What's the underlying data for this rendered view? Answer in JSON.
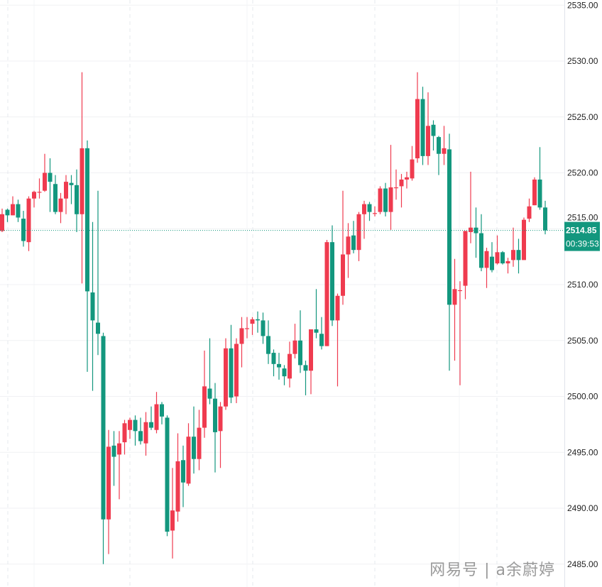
{
  "chart_data": {
    "type": "candlestick",
    "title": "",
    "xlabel": "",
    "ylabel": "",
    "ylim": [
      2484.5,
      2535.5
    ],
    "y_ticks": [
      "2485.00",
      "2490.00",
      "2495.00",
      "2500.00",
      "2505.00",
      "2510.00",
      "2515.00",
      "2520.00",
      "2525.00",
      "2530.00",
      "2535.00"
    ],
    "grid": true,
    "up_color": "#ef3b4f",
    "down_color": "#13977e",
    "last_price": {
      "value": 2514.85,
      "label": "2514.85",
      "countdown": "00:39:53",
      "color": "#13977e"
    },
    "candles_ohlc": [
      [
        2514.8,
        2516.8,
        2514.7,
        2516.3
      ],
      [
        2516.7,
        2516.8,
        2515.6,
        2516.2
      ],
      [
        2516.2,
        2517.9,
        2516.2,
        2517.2
      ],
      [
        2517.2,
        2517.6,
        2515.6,
        2516.0
      ],
      [
        2515.9,
        2516.6,
        2513.4,
        2513.9
      ],
      [
        2513.8,
        2517.9,
        2513.0,
        2517.7
      ],
      [
        2517.7,
        2518.4,
        2516.9,
        2518.3
      ],
      [
        2518.3,
        2519.5,
        2517.7,
        2518.3
      ],
      [
        2518.4,
        2521.7,
        2518.3,
        2520.0
      ],
      [
        2520.0,
        2521.3,
        2516.5,
        2519.2
      ],
      [
        2519.0,
        2519.8,
        2516.3,
        2516.5
      ],
      [
        2516.5,
        2518.2,
        2515.5,
        2517.7
      ],
      [
        2517.7,
        2519.8,
        2516.3,
        2519.2
      ],
      [
        2519.1,
        2519.8,
        2517.2,
        2518.9
      ],
      [
        2518.9,
        2520.3,
        2514.7,
        2516.3
      ],
      [
        2516.3,
        2529.0,
        2510.1,
        2522.2
      ],
      [
        2522.2,
        2522.9,
        2502.2,
        2509.4
      ],
      [
        2509.3,
        2515.6,
        2500.5,
        2506.8
      ],
      [
        2506.6,
        2518.4,
        2503.7,
        2505.6
      ],
      [
        2505.4,
        2505.7,
        2485.0,
        2489.0
      ],
      [
        2489.0,
        2497.0,
        2485.9,
        2495.5
      ],
      [
        2495.6,
        2496.9,
        2492.0,
        2494.6
      ],
      [
        2494.8,
        2496.9,
        2490.8,
        2495.8
      ],
      [
        2495.9,
        2497.9,
        2494.8,
        2497.6
      ],
      [
        2497.0,
        2498.1,
        2496.2,
        2497.9
      ],
      [
        2497.9,
        2498.3,
        2495.6,
        2496.9
      ],
      [
        2496.9,
        2498.1,
        2495.7,
        2496.0
      ],
      [
        2495.8,
        2498.6,
        2494.7,
        2497.7
      ],
      [
        2497.7,
        2499.1,
        2497.0,
        2497.2
      ],
      [
        2497.0,
        2500.4,
        2496.7,
        2499.3
      ],
      [
        2499.3,
        2499.5,
        2497.5,
        2498.2
      ],
      [
        2498.1,
        2498.3,
        2487.5,
        2487.9
      ],
      [
        2488.0,
        2493.6,
        2485.5,
        2489.8
      ],
      [
        2489.7,
        2496.7,
        2488.8,
        2494.2
      ],
      [
        2494.3,
        2495.6,
        2490.1,
        2492.3
      ],
      [
        2492.2,
        2497.6,
        2492.0,
        2496.4
      ],
      [
        2496.4,
        2499.1,
        2493.1,
        2494.4
      ],
      [
        2494.4,
        2498.8,
        2493.4,
        2497.2
      ],
      [
        2497.2,
        2504.1,
        2496.3,
        2500.9
      ],
      [
        2500.7,
        2505.2,
        2499.3,
        2499.8
      ],
      [
        2499.8,
        2501.2,
        2493.2,
        2496.8
      ],
      [
        2496.9,
        2499.5,
        2493.6,
        2499.1
      ],
      [
        2499.1,
        2505.2,
        2498.8,
        2504.3
      ],
      [
        2504.3,
        2506.4,
        2499.4,
        2499.9
      ],
      [
        2500.0,
        2505.2,
        2499.4,
        2504.7
      ],
      [
        2504.7,
        2507.1,
        2502.6,
        2506.1
      ],
      [
        2506.1,
        2507.1,
        2505.2,
        2506.1
      ],
      [
        2506.5,
        2507.1,
        2505.5,
        2506.9
      ],
      [
        2506.9,
        2507.6,
        2505.7,
        2506.8
      ],
      [
        2506.8,
        2507.5,
        2504.7,
        2505.4
      ],
      [
        2505.4,
        2506.8,
        2502.9,
        2503.8
      ],
      [
        2503.9,
        2504.2,
        2501.8,
        2502.9
      ],
      [
        2502.9,
        2503.9,
        2501.5,
        2502.6
      ],
      [
        2502.5,
        2502.8,
        2501.0,
        2501.8
      ],
      [
        2501.6,
        2504.9,
        2500.8,
        2503.8
      ],
      [
        2503.8,
        2506.5,
        2503.4,
        2505.0
      ],
      [
        2505.0,
        2507.7,
        2502.1,
        2502.8
      ],
      [
        2502.8,
        2503.2,
        2500.1,
        2502.3
      ],
      [
        2502.3,
        2506.0,
        2500.2,
        2506.0
      ],
      [
        2506.0,
        2509.6,
        2505.2,
        2505.7
      ],
      [
        2505.6,
        2507.1,
        2504.2,
        2504.5
      ],
      [
        2504.5,
        2514.0,
        2504.5,
        2513.8
      ],
      [
        2513.8,
        2515.3,
        2506.3,
        2506.8
      ],
      [
        2506.8,
        2509.2,
        2500.9,
        2509.0
      ],
      [
        2509.0,
        2518.4,
        2508.2,
        2512.7
      ],
      [
        2512.7,
        2515.5,
        2510.6,
        2514.3
      ],
      [
        2514.4,
        2515.7,
        2512.8,
        2513.1
      ],
      [
        2513.1,
        2516.5,
        2512.1,
        2516.3
      ],
      [
        2516.3,
        2517.5,
        2514.1,
        2517.2
      ],
      [
        2517.2,
        2517.4,
        2515.7,
        2516.5
      ],
      [
        2516.4,
        2517.0,
        2516.1,
        2516.4
      ],
      [
        2516.5,
        2518.8,
        2516.3,
        2518.6
      ],
      [
        2518.6,
        2519.1,
        2516.1,
        2516.5
      ],
      [
        2516.5,
        2522.5,
        2514.9,
        2518.7
      ],
      [
        2518.7,
        2520.3,
        2517.6,
        2518.7
      ],
      [
        2518.8,
        2519.9,
        2516.9,
        2519.4
      ],
      [
        2519.4,
        2520.1,
        2518.6,
        2519.6
      ],
      [
        2519.5,
        2522.4,
        2519.3,
        2521.2
      ],
      [
        2521.3,
        2529.0,
        2520.9,
        2526.6
      ],
      [
        2526.6,
        2527.7,
        2520.7,
        2521.5
      ],
      [
        2521.5,
        2527.2,
        2520.7,
        2524.2
      ],
      [
        2524.3,
        2524.7,
        2522.0,
        2523.3
      ],
      [
        2523.2,
        2523.3,
        2519.8,
        2521.7
      ],
      [
        2521.7,
        2524.2,
        2520.7,
        2522.2
      ],
      [
        2522.1,
        2523.5,
        2502.3,
        2508.2
      ],
      [
        2508.2,
        2512.3,
        2503.2,
        2509.6
      ],
      [
        2509.5,
        2510.3,
        2501.0,
        2509.5
      ],
      [
        2509.9,
        2514.8,
        2508.7,
        2514.8
      ],
      [
        2514.7,
        2520.1,
        2513.7,
        2515.1
      ],
      [
        2515.1,
        2516.9,
        2512.4,
        2514.6
      ],
      [
        2514.6,
        2516.3,
        2511.2,
        2511.5
      ],
      [
        2511.5,
        2513.3,
        2509.7,
        2513.0
      ],
      [
        2512.5,
        2513.8,
        2511.1,
        2511.3
      ],
      [
        2511.9,
        2514.4,
        2511.8,
        2512.9
      ],
      [
        2512.9,
        2513.0,
        2511.8,
        2511.9
      ],
      [
        2511.9,
        2512.4,
        2511.0,
        2512.1
      ],
      [
        2512.2,
        2515.1,
        2511.6,
        2513.1
      ],
      [
        2513.1,
        2514.1,
        2511.0,
        2512.2
      ],
      [
        2512.2,
        2516.0,
        2512.2,
        2515.8
      ],
      [
        2515.9,
        2517.7,
        2515.6,
        2517.0
      ],
      [
        2517.1,
        2519.6,
        2517.1,
        2519.4
      ],
      [
        2519.4,
        2522.3,
        2516.7,
        2516.9
      ],
      [
        2516.9,
        2517.5,
        2514.5,
        2514.85
      ]
    ],
    "ohlc_order": [
      "open",
      "high",
      "low",
      "close"
    ]
  },
  "watermark": "网易号 | a余蔚婷"
}
